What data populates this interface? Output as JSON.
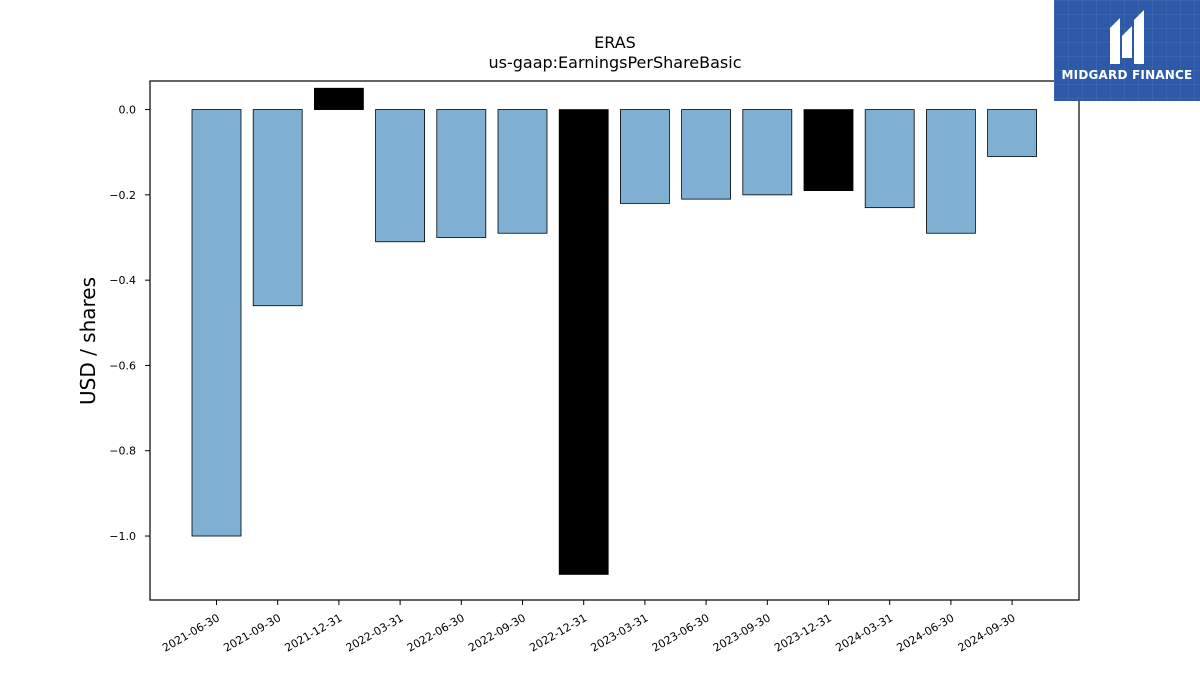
{
  "brand": {
    "name": "MIDGARD FINANCE",
    "logo_icon": "midgard-logo-icon",
    "background_color": "#2d5aa8"
  },
  "chart_data": {
    "type": "bar",
    "title": "ERAS",
    "subtitle": "us-gaap:EarningsPerShareBasic",
    "xlabel": "",
    "ylabel": "USD / shares",
    "categories": [
      "2021-06-30",
      "2021-09-30",
      "2021-12-31",
      "2022-03-31",
      "2022-06-30",
      "2022-09-30",
      "2022-12-31",
      "2023-03-31",
      "2023-06-30",
      "2023-09-30",
      "2023-12-31",
      "2024-03-31",
      "2024-06-30",
      "2024-09-30"
    ],
    "values": [
      -1.0,
      -0.46,
      0.05,
      -0.31,
      -0.3,
      -0.29,
      -1.09,
      -0.22,
      -0.21,
      -0.2,
      -0.19,
      -0.23,
      -0.29,
      -0.11
    ],
    "bar_colors": [
      "#7fb0d3",
      "#7fb0d3",
      "#000000",
      "#7fb0d3",
      "#7fb0d3",
      "#7fb0d3",
      "#000000",
      "#7fb0d3",
      "#7fb0d3",
      "#7fb0d3",
      "#000000",
      "#7fb0d3",
      "#7fb0d3",
      "#7fb0d3"
    ],
    "ylim": [
      -1.15,
      0.067
    ],
    "yticks": [
      0.0,
      -0.2,
      -0.4,
      -0.6,
      -0.8,
      -1.0
    ],
    "ytick_labels": [
      "0.0",
      "−0.2",
      "−0.4",
      "−0.6",
      "−0.8",
      "−1.0"
    ],
    "grid": false,
    "legend": "none"
  }
}
